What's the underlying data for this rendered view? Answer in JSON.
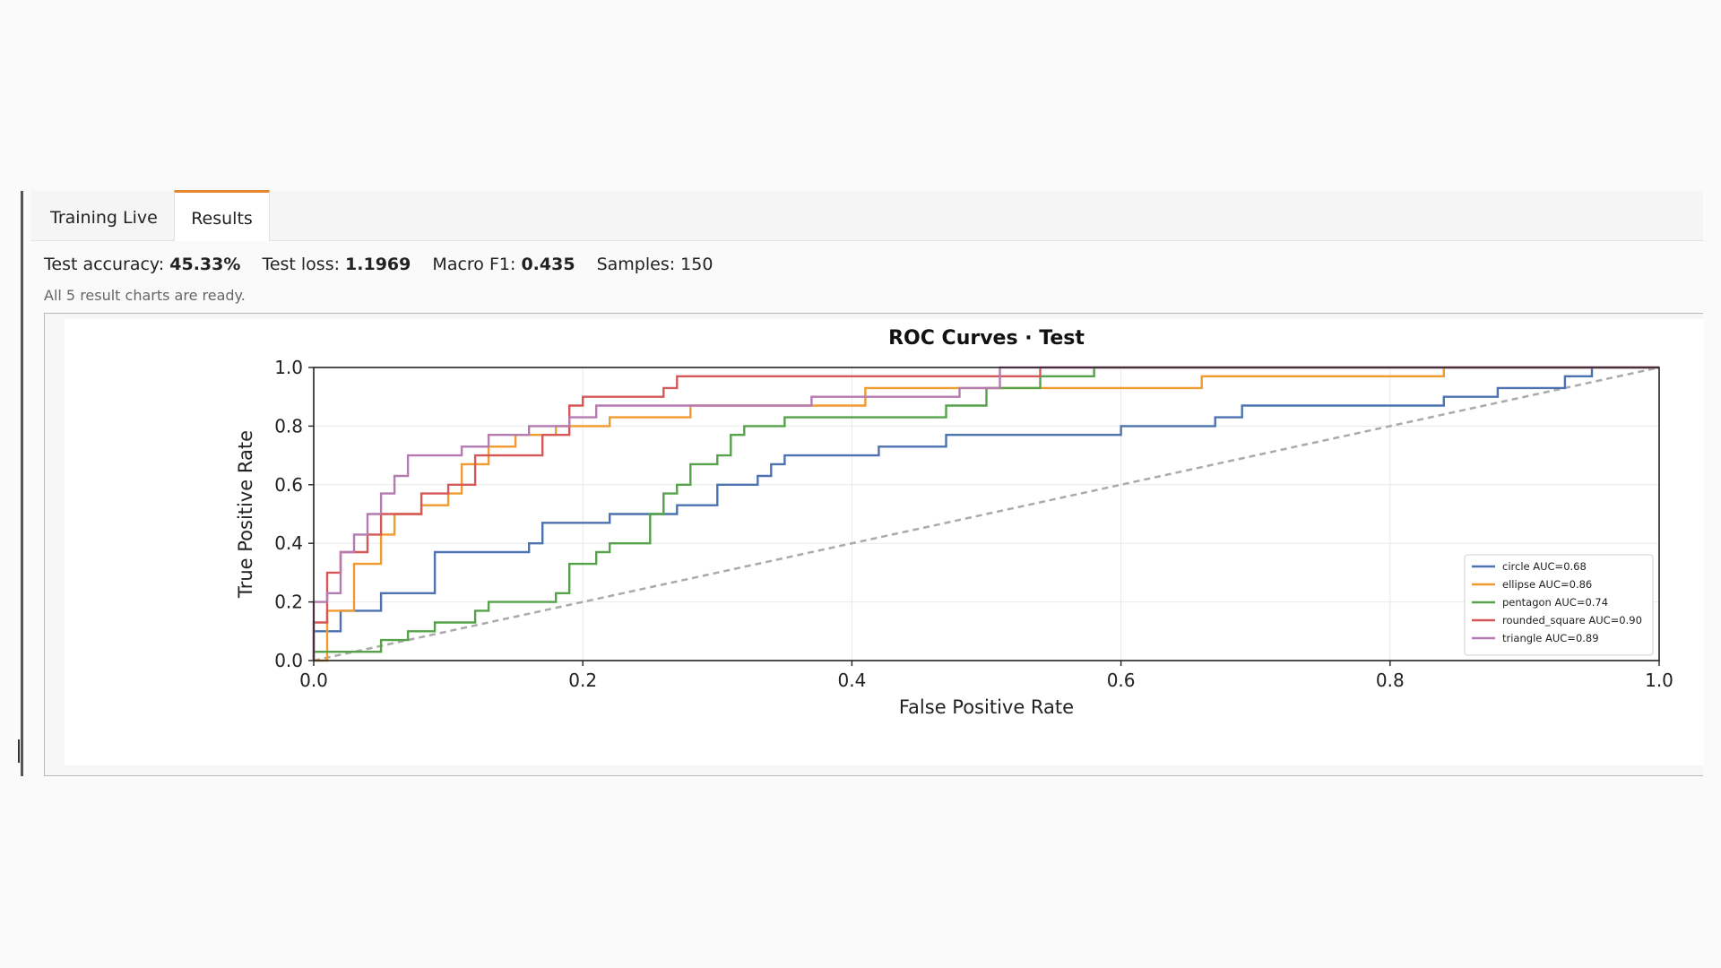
{
  "tabs": [
    {
      "label": "Training  Live",
      "active": false
    },
    {
      "label": "Results",
      "active": true
    }
  ],
  "metrics": {
    "accuracy_label": "Test accuracy:",
    "accuracy_value": "45.33%",
    "loss_label": "Test loss:",
    "loss_value": "1.1969",
    "f1_label": "Macro F1:",
    "f1_value": "0.435",
    "samples_label": "Samples: 150"
  },
  "status": "All 5 result charts are ready.",
  "colors": {
    "accent": "#e7872d",
    "circle": "#4c72b0",
    "ellipse": "#f19a2e",
    "pentagon": "#55a24a",
    "rounded_square": "#d65757",
    "triangle": "#b57ab0",
    "diagonal": "#aaaaaa"
  },
  "chart_data": {
    "type": "line",
    "title": "ROC Curves · Test",
    "xlabel": "False Positive Rate",
    "ylabel": "True Positive Rate",
    "xlim": [
      0,
      1
    ],
    "ylim": [
      0,
      1
    ],
    "xticks": [
      "0.0",
      "0.2",
      "0.4",
      "0.6",
      "0.8",
      "1.0"
    ],
    "yticks": [
      "0.0",
      "0.2",
      "0.4",
      "0.6",
      "0.8",
      "1.0"
    ],
    "grid": true,
    "legend_position": "lower-right",
    "diagonal": true,
    "series": [
      {
        "name": "circle AUC=0.68",
        "color": "#4c72b0",
        "points": [
          [
            0,
            0
          ],
          [
            0,
            0.1
          ],
          [
            0.02,
            0.1
          ],
          [
            0.02,
            0.13
          ],
          [
            0.02,
            0.17
          ],
          [
            0.05,
            0.17
          ],
          [
            0.05,
            0.23
          ],
          [
            0.09,
            0.23
          ],
          [
            0.09,
            0.37
          ],
          [
            0.16,
            0.37
          ],
          [
            0.16,
            0.4
          ],
          [
            0.17,
            0.4
          ],
          [
            0.17,
            0.47
          ],
          [
            0.22,
            0.47
          ],
          [
            0.22,
            0.5
          ],
          [
            0.27,
            0.5
          ],
          [
            0.27,
            0.53
          ],
          [
            0.3,
            0.53
          ],
          [
            0.3,
            0.6
          ],
          [
            0.33,
            0.6
          ],
          [
            0.33,
            0.63
          ],
          [
            0.34,
            0.63
          ],
          [
            0.34,
            0.67
          ],
          [
            0.35,
            0.67
          ],
          [
            0.35,
            0.7
          ],
          [
            0.42,
            0.7
          ],
          [
            0.42,
            0.73
          ],
          [
            0.47,
            0.73
          ],
          [
            0.47,
            0.77
          ],
          [
            0.6,
            0.77
          ],
          [
            0.6,
            0.8
          ],
          [
            0.67,
            0.8
          ],
          [
            0.67,
            0.83
          ],
          [
            0.69,
            0.83
          ],
          [
            0.69,
            0.87
          ],
          [
            0.84,
            0.87
          ],
          [
            0.84,
            0.9
          ],
          [
            0.88,
            0.9
          ],
          [
            0.88,
            0.93
          ],
          [
            0.93,
            0.93
          ],
          [
            0.93,
            0.97
          ],
          [
            0.95,
            0.97
          ],
          [
            0.95,
            1.0
          ],
          [
            1.0,
            1.0
          ]
        ]
      },
      {
        "name": "ellipse AUC=0.86",
        "color": "#f19a2e",
        "points": [
          [
            0,
            0
          ],
          [
            0.01,
            0
          ],
          [
            0.01,
            0.17
          ],
          [
            0.03,
            0.17
          ],
          [
            0.03,
            0.33
          ],
          [
            0.05,
            0.33
          ],
          [
            0.05,
            0.43
          ],
          [
            0.06,
            0.43
          ],
          [
            0.06,
            0.5
          ],
          [
            0.08,
            0.5
          ],
          [
            0.08,
            0.53
          ],
          [
            0.1,
            0.53
          ],
          [
            0.1,
            0.57
          ],
          [
            0.11,
            0.57
          ],
          [
            0.11,
            0.67
          ],
          [
            0.13,
            0.67
          ],
          [
            0.13,
            0.73
          ],
          [
            0.15,
            0.73
          ],
          [
            0.15,
            0.77
          ],
          [
            0.18,
            0.77
          ],
          [
            0.18,
            0.8
          ],
          [
            0.22,
            0.8
          ],
          [
            0.22,
            0.83
          ],
          [
            0.28,
            0.83
          ],
          [
            0.28,
            0.87
          ],
          [
            0.41,
            0.87
          ],
          [
            0.41,
            0.93
          ],
          [
            0.66,
            0.93
          ],
          [
            0.66,
            0.97
          ],
          [
            0.84,
            0.97
          ],
          [
            0.84,
            1.0
          ],
          [
            1.0,
            1.0
          ]
        ]
      },
      {
        "name": "pentagon AUC=0.74",
        "color": "#55a24a",
        "points": [
          [
            0,
            0
          ],
          [
            0,
            0.03
          ],
          [
            0.05,
            0.03
          ],
          [
            0.05,
            0.07
          ],
          [
            0.07,
            0.07
          ],
          [
            0.07,
            0.1
          ],
          [
            0.09,
            0.1
          ],
          [
            0.09,
            0.13
          ],
          [
            0.12,
            0.13
          ],
          [
            0.12,
            0.17
          ],
          [
            0.13,
            0.17
          ],
          [
            0.13,
            0.2
          ],
          [
            0.18,
            0.2
          ],
          [
            0.18,
            0.23
          ],
          [
            0.19,
            0.23
          ],
          [
            0.19,
            0.33
          ],
          [
            0.21,
            0.33
          ],
          [
            0.21,
            0.37
          ],
          [
            0.22,
            0.37
          ],
          [
            0.22,
            0.4
          ],
          [
            0.25,
            0.4
          ],
          [
            0.25,
            0.5
          ],
          [
            0.26,
            0.5
          ],
          [
            0.26,
            0.57
          ],
          [
            0.27,
            0.57
          ],
          [
            0.27,
            0.6
          ],
          [
            0.28,
            0.6
          ],
          [
            0.28,
            0.67
          ],
          [
            0.3,
            0.67
          ],
          [
            0.3,
            0.7
          ],
          [
            0.31,
            0.7
          ],
          [
            0.31,
            0.77
          ],
          [
            0.32,
            0.77
          ],
          [
            0.32,
            0.8
          ],
          [
            0.35,
            0.8
          ],
          [
            0.35,
            0.83
          ],
          [
            0.47,
            0.83
          ],
          [
            0.47,
            0.87
          ],
          [
            0.5,
            0.87
          ],
          [
            0.5,
            0.93
          ],
          [
            0.54,
            0.93
          ],
          [
            0.54,
            0.97
          ],
          [
            0.58,
            0.97
          ],
          [
            0.58,
            1.0
          ],
          [
            1.0,
            1.0
          ]
        ]
      },
      {
        "name": "rounded_square AUC=0.90",
        "color": "#d65757",
        "points": [
          [
            0,
            0
          ],
          [
            0,
            0.13
          ],
          [
            0.01,
            0.13
          ],
          [
            0.01,
            0.3
          ],
          [
            0.02,
            0.3
          ],
          [
            0.02,
            0.37
          ],
          [
            0.04,
            0.37
          ],
          [
            0.04,
            0.43
          ],
          [
            0.05,
            0.43
          ],
          [
            0.05,
            0.5
          ],
          [
            0.08,
            0.5
          ],
          [
            0.08,
            0.57
          ],
          [
            0.1,
            0.57
          ],
          [
            0.1,
            0.6
          ],
          [
            0.12,
            0.6
          ],
          [
            0.12,
            0.7
          ],
          [
            0.17,
            0.7
          ],
          [
            0.17,
            0.77
          ],
          [
            0.19,
            0.77
          ],
          [
            0.19,
            0.87
          ],
          [
            0.2,
            0.87
          ],
          [
            0.2,
            0.9
          ],
          [
            0.26,
            0.9
          ],
          [
            0.26,
            0.93
          ],
          [
            0.27,
            0.93
          ],
          [
            0.27,
            0.97
          ],
          [
            0.54,
            0.97
          ],
          [
            0.54,
            1.0
          ],
          [
            1.0,
            1.0
          ]
        ]
      },
      {
        "name": "triangle AUC=0.89",
        "color": "#b57ab0",
        "points": [
          [
            0,
            0
          ],
          [
            0,
            0.2
          ],
          [
            0.01,
            0.2
          ],
          [
            0.01,
            0.23
          ],
          [
            0.02,
            0.23
          ],
          [
            0.02,
            0.37
          ],
          [
            0.03,
            0.37
          ],
          [
            0.03,
            0.43
          ],
          [
            0.04,
            0.43
          ],
          [
            0.04,
            0.5
          ],
          [
            0.05,
            0.5
          ],
          [
            0.05,
            0.57
          ],
          [
            0.06,
            0.57
          ],
          [
            0.06,
            0.63
          ],
          [
            0.07,
            0.63
          ],
          [
            0.07,
            0.7
          ],
          [
            0.11,
            0.7
          ],
          [
            0.11,
            0.73
          ],
          [
            0.13,
            0.73
          ],
          [
            0.13,
            0.77
          ],
          [
            0.16,
            0.77
          ],
          [
            0.16,
            0.8
          ],
          [
            0.19,
            0.8
          ],
          [
            0.19,
            0.83
          ],
          [
            0.21,
            0.83
          ],
          [
            0.21,
            0.87
          ],
          [
            0.37,
            0.87
          ],
          [
            0.37,
            0.9
          ],
          [
            0.48,
            0.9
          ],
          [
            0.48,
            0.93
          ],
          [
            0.51,
            0.93
          ],
          [
            0.51,
            1.0
          ],
          [
            1.0,
            1.0
          ]
        ]
      }
    ]
  }
}
